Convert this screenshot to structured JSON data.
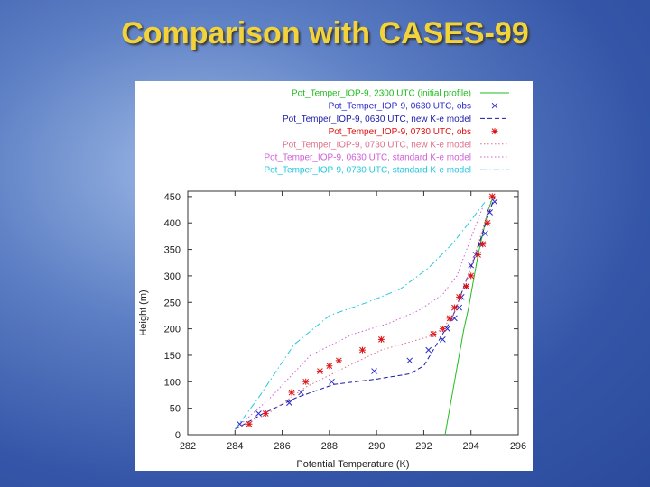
{
  "slide": {
    "title": "Comparison with CASES-99"
  },
  "colors": {
    "init": "#22bb22",
    "obs0630": "#2a2acc",
    "model0630": "#1a1aa8",
    "obs0730": "#dd1111",
    "model0730": "#e0708a",
    "std0630": "#d060d8",
    "std0730": "#22c8e0"
  },
  "chart_data": {
    "type": "line",
    "xlabel": "Potential Temperature (K)",
    "ylabel": "Height (m)",
    "xlim": [
      282,
      296
    ],
    "ylim": [
      0,
      460
    ],
    "xticks": [
      "282",
      "284",
      "286",
      "288",
      "290",
      "292",
      "294",
      "296"
    ],
    "yticks": [
      "0",
      "50",
      "100",
      "150",
      "200",
      "250",
      "300",
      "350",
      "400",
      "450"
    ],
    "grid": false,
    "legend_position": "top",
    "series": [
      {
        "name": "Pot_Temper_IOP-9, 2300 UTC (initial profile)",
        "key": "init",
        "style": "solid",
        "marker": "none",
        "x": [
          292.9,
          293.1,
          293.3,
          293.5,
          293.7,
          293.9,
          294.1,
          294.3,
          294.5,
          294.7,
          294.9
        ],
        "y": [
          0,
          50,
          100,
          150,
          200,
          240,
          290,
          340,
          380,
          420,
          445
        ]
      },
      {
        "name": "Pot_Temper_IOP-9, 0630 UTC, obs",
        "key": "obs0630",
        "style": "none",
        "marker": "x",
        "x": [
          284.2,
          285.0,
          286.3,
          286.8,
          288.1,
          289.9,
          291.4,
          292.2,
          292.8,
          293.0,
          293.3,
          293.5,
          293.6,
          293.8,
          294.0,
          294.2,
          294.4,
          294.6,
          294.8,
          295.0
        ],
        "y": [
          20,
          40,
          60,
          80,
          100,
          120,
          140,
          160,
          180,
          200,
          220,
          240,
          260,
          280,
          320,
          340,
          360,
          380,
          420,
          440
        ]
      },
      {
        "name": "Pot_Temper_IOP-9, 0630 UTC, new K-e model",
        "key": "model0630",
        "style": "dashed",
        "marker": "none",
        "x": [
          284.0,
          285.2,
          286.6,
          288.2,
          290.0,
          291.4,
          292.0,
          292.4,
          292.8,
          293.2,
          293.7,
          294.2,
          294.7,
          295.0
        ],
        "y": [
          10,
          40,
          70,
          95,
          105,
          115,
          130,
          160,
          190,
          220,
          280,
          340,
          410,
          450
        ]
      },
      {
        "name": "Pot_Temper_IOP-9, 0730 UTC, obs",
        "key": "obs0730",
        "style": "none",
        "marker": "*",
        "x": [
          284.6,
          285.3,
          286.4,
          287.0,
          287.6,
          288.0,
          288.4,
          289.4,
          290.2,
          292.4,
          292.8,
          293.1,
          293.3,
          293.5,
          293.8,
          294.0,
          294.3,
          294.5,
          294.7,
          294.9
        ],
        "y": [
          20,
          40,
          80,
          100,
          120,
          130,
          140,
          160,
          180,
          190,
          200,
          220,
          240,
          260,
          280,
          300,
          340,
          360,
          400,
          450
        ]
      },
      {
        "name": "Pot_Temper_IOP-9, 0730 UTC, new K-e model",
        "key": "model0730",
        "style": "dotted",
        "marker": "none",
        "x": [
          284.0,
          285.4,
          287.0,
          288.8,
          290.2,
          291.4,
          292.2,
          292.8,
          293.3,
          293.8,
          294.3,
          294.9
        ],
        "y": [
          10,
          40,
          90,
          130,
          160,
          175,
          185,
          200,
          230,
          290,
          360,
          450
        ]
      },
      {
        "name": "Pot_Temper_IOP-9, 0630 UTC, standard K-e model",
        "key": "std0630",
        "style": "dotted",
        "marker": "none",
        "x": [
          284.0,
          285.5,
          287.2,
          289.0,
          290.5,
          291.8,
          292.8,
          293.4,
          293.9,
          294.5
        ],
        "y": [
          10,
          70,
          150,
          190,
          210,
          235,
          265,
          300,
          360,
          430
        ]
      },
      {
        "name": "Pot_Temper_IOP-9, 0730 UTC, standard K-e model",
        "key": "std0730",
        "style": "dashdot",
        "marker": "none",
        "x": [
          284.0,
          285.0,
          286.5,
          288.0,
          289.6,
          291.0,
          292.2,
          293.2,
          294.0,
          294.6
        ],
        "y": [
          10,
          70,
          170,
          225,
          250,
          275,
          315,
          360,
          405,
          440
        ]
      }
    ]
  }
}
